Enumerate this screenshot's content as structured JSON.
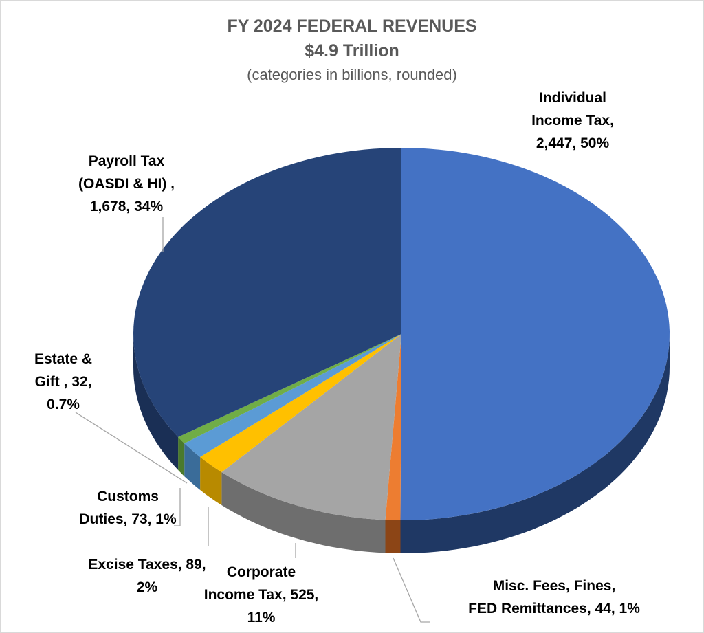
{
  "chart_data": {
    "type": "pie",
    "style": "3d",
    "title": "FY 2024 FEDERAL REVENUES",
    "subtitle": "$4.9 Trillion",
    "note": "(categories in billions, rounded)",
    "legend": "none",
    "slices": [
      {
        "name": "Individual Income Tax",
        "value": 2447,
        "percent": "50%",
        "color": "#4472C4",
        "side": "#1F3864",
        "label": [
          "Individual",
          "Income Tax,",
          "2,447, 50%"
        ]
      },
      {
        "name": "Misc. Fees, Fines, FED Remittances",
        "value": 44,
        "percent": "1%",
        "color": "#ED7D31",
        "side": "#8C4516",
        "label": [
          "Misc. Fees, Fines,",
          "FED Remittances, 44, 1%"
        ]
      },
      {
        "name": "Corporate Income Tax",
        "value": 525,
        "percent": "11%",
        "color": "#A5A5A5",
        "side": "#6E6E6E",
        "label": [
          "Corporate",
          "Income Tax, 525,",
          "11%"
        ]
      },
      {
        "name": "Excise Taxes",
        "value": 89,
        "percent": "2%",
        "color": "#FFC000",
        "side": "#B88A00",
        "label": [
          "Excise Taxes, 89,",
          "2%"
        ]
      },
      {
        "name": "Customs Duties",
        "value": 73,
        "percent": "1%",
        "color": "#5B9BD5",
        "side": "#3A6C99",
        "label": [
          "Customs",
          "Duties, 73, 1%"
        ]
      },
      {
        "name": "Estate & Gift",
        "value": 32,
        "percent": "0.7%",
        "color": "#70AD47",
        "side": "#4A7A2C",
        "label": [
          "Estate &",
          "Gift , 32,",
          "0.7%"
        ]
      },
      {
        "name": "Payroll Tax (OASDI & HI)",
        "value": 1678,
        "percent": "34%",
        "color": "#264478",
        "side": "#1A2F55",
        "label": [
          "Payroll Tax",
          "(OASDI & HI) ,",
          "1,678, 34%"
        ]
      }
    ]
  }
}
